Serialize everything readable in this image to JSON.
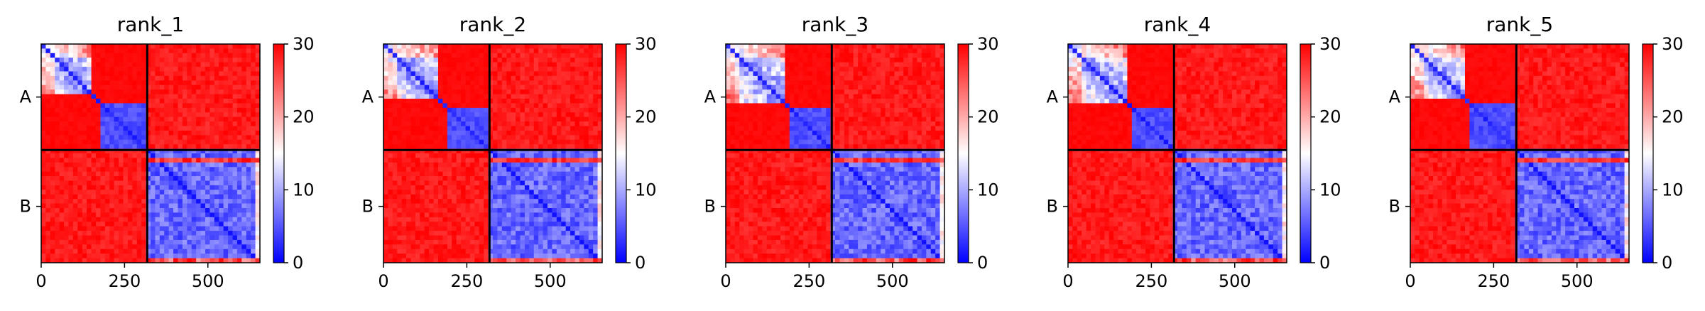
{
  "chart_data": [
    {
      "type": "heatmap",
      "title": "rank_1",
      "chains": [
        "A",
        "B"
      ],
      "chain_lengths": [
        318,
        338
      ],
      "x_ticks": [
        0,
        250,
        500
      ],
      "xlim": [
        0,
        656
      ],
      "colorbar": {
        "min": 0,
        "max": 30,
        "ticks": [
          0,
          10,
          20,
          30
        ],
        "colormap": "bwr"
      },
      "variant": {
        "shift": -4,
        "intra_a_low_band": true
      }
    },
    {
      "type": "heatmap",
      "title": "rank_2",
      "chains": [
        "A",
        "B"
      ],
      "chain_lengths": [
        318,
        338
      ],
      "x_ticks": [
        0,
        250,
        500
      ],
      "xlim": [
        0,
        656
      ],
      "colorbar": {
        "min": 0,
        "max": 30,
        "ticks": [
          0,
          10,
          20,
          30
        ],
        "colormap": "bwr"
      },
      "variant": {
        "shift": 0,
        "intra_a_low_band": true
      }
    },
    {
      "type": "heatmap",
      "title": "rank_3",
      "chains": [
        "A",
        "B"
      ],
      "chain_lengths": [
        318,
        338
      ],
      "x_ticks": [
        0,
        250,
        500
      ],
      "xlim": [
        0,
        656
      ],
      "colorbar": {
        "min": 0,
        "max": 30,
        "ticks": [
          0,
          10,
          20,
          30
        ],
        "colormap": "bwr"
      },
      "variant": {
        "shift": 2,
        "intra_a_low_band": true
      }
    },
    {
      "type": "heatmap",
      "title": "rank_4",
      "chains": [
        "A",
        "B"
      ],
      "chain_lengths": [
        318,
        338
      ],
      "x_ticks": [
        0,
        250,
        500
      ],
      "xlim": [
        0,
        656
      ],
      "colorbar": {
        "min": 0,
        "max": 30,
        "ticks": [
          0,
          10,
          20,
          30
        ],
        "colormap": "bwr"
      },
      "variant": {
        "shift": 4,
        "intra_a_low_band": true
      }
    },
    {
      "type": "heatmap",
      "title": "rank_5",
      "chains": [
        "A",
        "B"
      ],
      "chain_lengths": [
        318,
        338
      ],
      "x_ticks": [
        0,
        250,
        500
      ],
      "xlim": [
        0,
        656
      ],
      "colorbar": {
        "min": 0,
        "max": 30,
        "ticks": [
          0,
          10,
          20,
          30
        ],
        "colormap": "bwr"
      },
      "variant": {
        "shift": -2,
        "intra_a_low_band": true
      }
    }
  ]
}
